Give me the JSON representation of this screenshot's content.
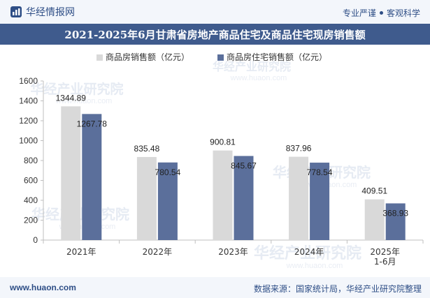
{
  "header": {
    "brand": "华经情报网",
    "tagline_left": "专业严谨",
    "tagline_right": "客观科学"
  },
  "colors": {
    "series_sales": "#d9d9d9",
    "series_residential": "#5b6f9b",
    "title_bg": "#3f5b8d",
    "brand": "#2e4e86"
  },
  "footer": {
    "website": "www.huaon.com",
    "source": "数据来源：国家统计局，华经产业研究院整理"
  },
  "watermark": {
    "cn": "华经产业研究院",
    "url": "www.huaon.com"
  },
  "chart_data": {
    "type": "bar",
    "title": "2021-2025年6月甘肃省房地产商品住宅及商品住宅现房销售额",
    "categories": [
      "2021年",
      "2022年",
      "2023年",
      "2024年",
      "2025年 1-6月"
    ],
    "category_lines": [
      [
        "2021年"
      ],
      [
        "2022年"
      ],
      [
        "2023年"
      ],
      [
        "2024年"
      ],
      [
        "2025年",
        "1-6月"
      ]
    ],
    "series": [
      {
        "name": "商品房销售额（亿元）",
        "values": [
          1344.89,
          835.48,
          900.81,
          837.96,
          409.51
        ],
        "labels": [
          "1344.89",
          "835.48",
          "900.81",
          "837.96",
          "409.51"
        ]
      },
      {
        "name": "商品房住宅销售额（亿元）",
        "values": [
          1267.78,
          780.54,
          845.67,
          778.54,
          368.93
        ],
        "labels": [
          "1267.78",
          "780.54",
          "845.67",
          "778.54",
          "368.93"
        ]
      }
    ],
    "ylim": [
      0,
      1600
    ],
    "yticks": [
      0,
      200,
      400,
      600,
      800,
      1000,
      1200,
      1400,
      1600
    ],
    "xlabel": "",
    "ylabel": "",
    "legend_position": "top-center",
    "grid": false
  }
}
